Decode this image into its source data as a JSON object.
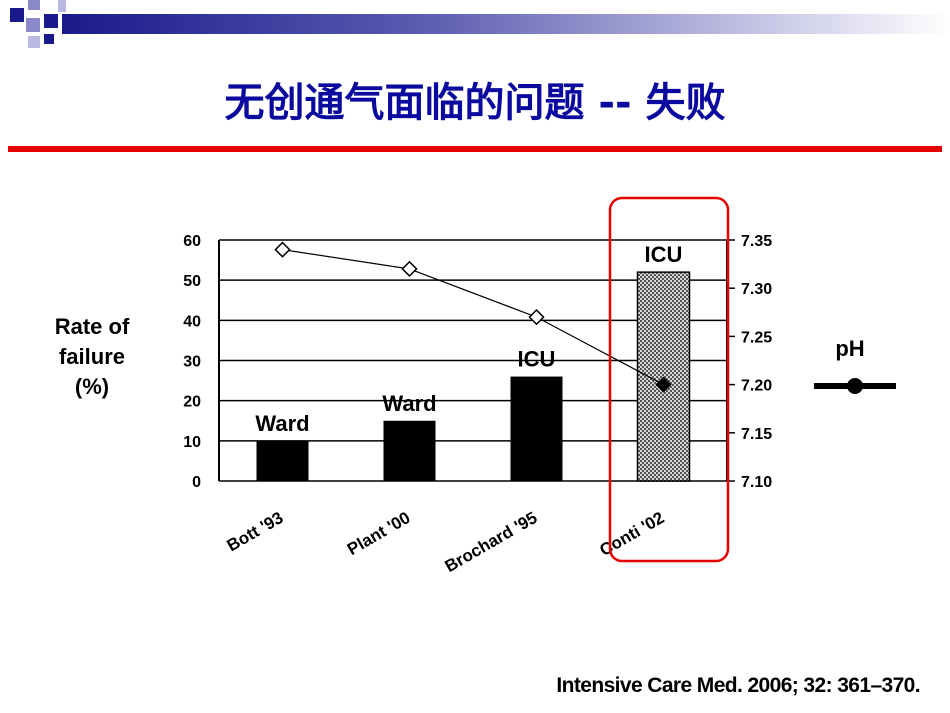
{
  "slide": {
    "title": "无创通气面临的问题 -- 失败",
    "citation": "Intensive Care Med. 2006; 32: 361–370.",
    "colors": {
      "title": "#0a0a9e",
      "rule": "#e60000",
      "band": "#1a1a8c",
      "highlight_box": "#e60000"
    }
  },
  "chart_data": {
    "type": "bar",
    "ylabel_lines": [
      "Rate of",
      "failure",
      "(%)"
    ],
    "y2label": "pH",
    "categories": [
      "Bott '93",
      "Plant '00",
      "Brochard '95",
      "Conti '02"
    ],
    "bar_values": [
      10,
      15,
      26,
      52
    ],
    "bar_labels": [
      "Ward",
      "Ward",
      "ICU",
      "ICU"
    ],
    "bar_styles": [
      "solid",
      "solid",
      "solid",
      "hatched"
    ],
    "ph_values": [
      7.34,
      7.32,
      7.27,
      7.2
    ],
    "ylim": [
      0,
      60
    ],
    "yticks": [
      "0",
      "10",
      "20",
      "30",
      "40",
      "50",
      "60"
    ],
    "y2lim": [
      7.1,
      7.35
    ],
    "y2ticks": [
      "7.10",
      "7.15",
      "7.20",
      "7.25",
      "7.30",
      "7.35"
    ],
    "grid": true,
    "highlighted_category": "Conti '02"
  }
}
